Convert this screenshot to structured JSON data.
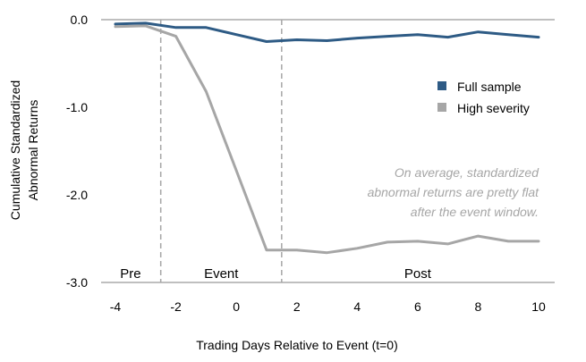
{
  "chart_data": {
    "type": "line",
    "title": "",
    "xlabel": "Trading Days Relative to Event (t=0)",
    "ylabel": [
      "Cumulative Standardized",
      "Abnormal Returns"
    ],
    "xlim": [
      -4,
      10
    ],
    "ylim": [
      -3.0,
      0.0
    ],
    "x_ticks": [
      -4,
      -2,
      0,
      2,
      4,
      6,
      8,
      10
    ],
    "y_ticks": [
      0.0,
      -1.0,
      -2.0,
      -3.0
    ],
    "y_tick_labels": [
      "0.0",
      "-1.0",
      "-2.0",
      "-3.0"
    ],
    "grid": false,
    "legend_position": "right",
    "x": [
      -4,
      -3,
      -2,
      -1,
      0,
      1,
      2,
      3,
      4,
      5,
      6,
      7,
      8,
      9,
      10
    ],
    "series": [
      {
        "name": "Full sample",
        "color": "#2e5b85",
        "values": [
          -0.05,
          -0.04,
          -0.09,
          -0.09,
          -0.17,
          -0.25,
          -0.23,
          -0.24,
          -0.21,
          -0.19,
          -0.17,
          -0.2,
          -0.14,
          -0.17,
          -0.2
        ]
      },
      {
        "name": "High severity",
        "color": "#a6a6a6",
        "values": [
          -0.08,
          -0.07,
          -0.19,
          -0.82,
          -1.72,
          -2.63,
          -2.63,
          -2.66,
          -2.61,
          -2.54,
          -2.53,
          -2.56,
          -2.47,
          -2.53,
          -2.53
        ]
      }
    ],
    "dividers": [
      -2.5,
      1.5
    ],
    "regions": [
      {
        "label": "Pre",
        "x": -3.5
      },
      {
        "label": "Event",
        "x": -0.5
      },
      {
        "label": "Post",
        "x": 6.0
      }
    ],
    "annotation": [
      "On average, standardized",
      "abnormal returns are pretty flat",
      "after the event window."
    ]
  }
}
